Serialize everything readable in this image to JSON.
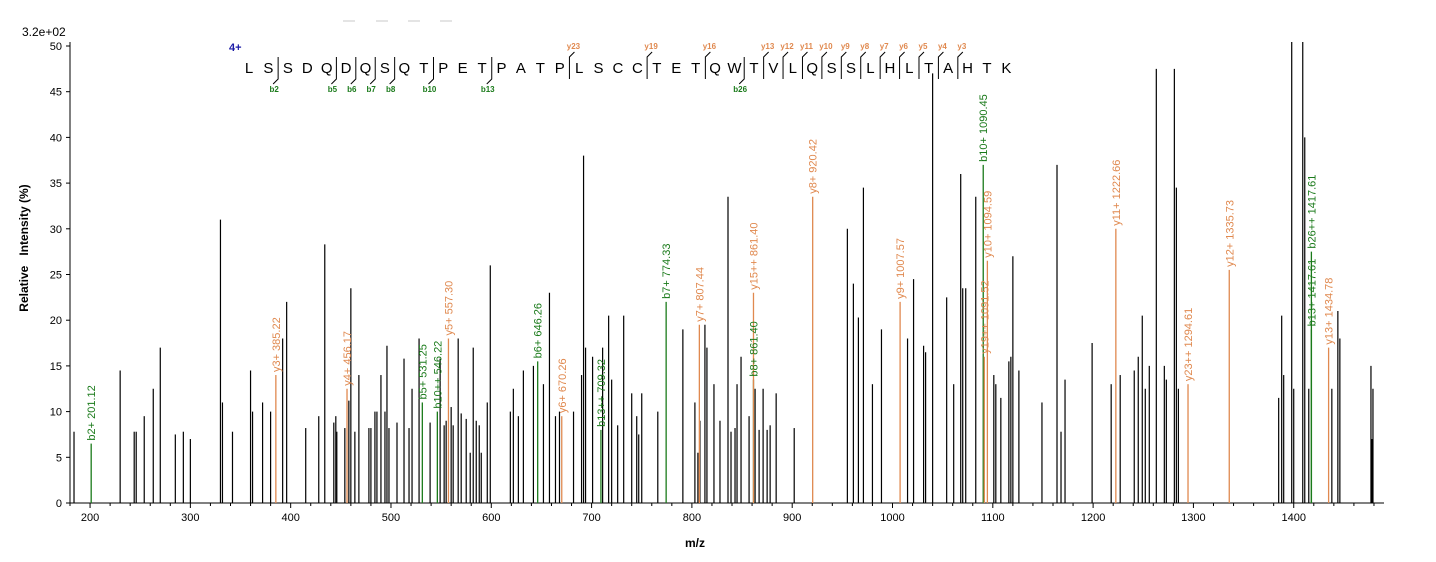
{
  "colors": {
    "b_ion": "#1a7a1a",
    "y_ion": "#e0894f",
    "unannotated": "#000000",
    "charge": "#1a1aa6"
  },
  "chart_data": {
    "type": "bar",
    "title": "",
    "xlabel": "m/z",
    "ylabel": "Relative   Intensity (%)",
    "scale_label": "3.2e+02",
    "xlim": [
      180,
      1490
    ],
    "ylim": [
      0,
      50
    ],
    "x_ticks": [
      200,
      300,
      400,
      500,
      600,
      700,
      800,
      900,
      1000,
      1100,
      1200,
      1300,
      1400
    ],
    "y_ticks": [
      0,
      5,
      10,
      15,
      20,
      25,
      30,
      35,
      40,
      45,
      50
    ],
    "annotated_peaks": [
      {
        "mz": 201.12,
        "intensity": 6.5,
        "label": "b2+ 201.12",
        "ion": "b"
      },
      {
        "mz": 385.22,
        "intensity": 14,
        "label": "y3+ 385.22",
        "ion": "y"
      },
      {
        "mz": 456.17,
        "intensity": 12.5,
        "label": "y4+ 456.17",
        "ion": "y"
      },
      {
        "mz": 531.25,
        "intensity": 11,
        "label": "b5+ 531.25",
        "ion": "b"
      },
      {
        "mz": 546.22,
        "intensity": 10,
        "label": "b10++ 546.22",
        "ion": "b"
      },
      {
        "mz": 557.3,
        "intensity": 18,
        "label": "y5+ 557.30",
        "ion": "y"
      },
      {
        "mz": 646.26,
        "intensity": 15.5,
        "label": "b6+ 646.26",
        "ion": "b"
      },
      {
        "mz": 670.26,
        "intensity": 9.5,
        "label": "y6+ 670.26",
        "ion": "y"
      },
      {
        "mz": 709.32,
        "intensity": 8,
        "label": "b13++ 709.32",
        "ion": "b"
      },
      {
        "mz": 774.33,
        "intensity": 22,
        "label": "b7+ 774.33",
        "ion": "b"
      },
      {
        "mz": 807.44,
        "intensity": 19.5,
        "label": "y7+ 807.44",
        "ion": "y"
      },
      {
        "mz": 861.4,
        "intensity": 13.5,
        "label": "b8+ 861.40",
        "ion": "b"
      },
      {
        "mz": 861.4,
        "intensity": 23,
        "label": "y15++ 861.40",
        "ion": "y"
      },
      {
        "mz": 920.42,
        "intensity": 33.5,
        "label": "y8+ 920.42",
        "ion": "y"
      },
      {
        "mz": 1007.57,
        "intensity": 22,
        "label": "y9+ 1007.57",
        "ion": "y"
      },
      {
        "mz": 1090.45,
        "intensity": 37,
        "label": "b10+ 1090.45",
        "ion": "b"
      },
      {
        "mz": 1091.52,
        "intensity": 16,
        "label": "y19++ 1091.52",
        "ion": "y"
      },
      {
        "mz": 1094.59,
        "intensity": 26.5,
        "label": "y10+ 1094.59",
        "ion": "y"
      },
      {
        "mz": 1222.66,
        "intensity": 30,
        "label": "y11+ 1222.66",
        "ion": "y"
      },
      {
        "mz": 1294.61,
        "intensity": 13,
        "label": "y23++ 1294.61",
        "ion": "y"
      },
      {
        "mz": 1335.73,
        "intensity": 25.5,
        "label": "y12+ 1335.73",
        "ion": "y"
      },
      {
        "mz": 1417.61,
        "intensity": 19,
        "label": "b13+ 1417.61",
        "ion": "b"
      },
      {
        "mz": 1417.61,
        "intensity": 27.5,
        "label": "b26++ 1417.61",
        "ion": "b"
      },
      {
        "mz": 1434.78,
        "intensity": 17,
        "label": "y13+ 1434.78",
        "ion": "y"
      }
    ],
    "unannotated_peaks": [
      [
        184,
        7.8
      ],
      [
        230,
        14.5
      ],
      [
        244,
        7.8
      ],
      [
        246,
        7.8
      ],
      [
        254,
        9.5
      ],
      [
        263,
        12.5
      ],
      [
        270,
        17
      ],
      [
        285,
        7.5
      ],
      [
        293,
        7.8
      ],
      [
        300,
        7
      ],
      [
        330,
        31
      ],
      [
        332,
        11
      ],
      [
        342,
        7.8
      ],
      [
        360,
        14.5
      ],
      [
        362,
        10
      ],
      [
        372,
        11
      ],
      [
        380,
        10
      ],
      [
        392,
        18
      ],
      [
        396,
        22
      ],
      [
        415,
        8.2
      ],
      [
        428,
        9.5
      ],
      [
        434,
        28.3
      ],
      [
        443,
        8.8
      ],
      [
        445,
        9.5
      ],
      [
        446,
        7.8
      ],
      [
        454,
        8.2
      ],
      [
        458,
        11.2
      ],
      [
        460,
        23.5
      ],
      [
        464,
        7.8
      ],
      [
        468,
        14
      ],
      [
        478,
        8.2
      ],
      [
        480,
        8.2
      ],
      [
        484,
        10
      ],
      [
        486,
        10
      ],
      [
        490,
        14
      ],
      [
        494,
        10
      ],
      [
        496,
        17.2
      ],
      [
        498,
        8.2
      ],
      [
        506,
        8.8
      ],
      [
        513,
        15.8
      ],
      [
        518,
        8.2
      ],
      [
        521,
        12.5
      ],
      [
        528,
        18
      ],
      [
        539,
        8.8
      ],
      [
        549,
        15.8
      ],
      [
        553,
        8.5
      ],
      [
        555,
        9
      ],
      [
        560,
        10.5
      ],
      [
        562,
        8.5
      ],
      [
        567,
        18
      ],
      [
        570,
        9.8
      ],
      [
        575,
        9.2
      ],
      [
        579,
        5.5
      ],
      [
        582,
        17
      ],
      [
        585,
        9
      ],
      [
        588,
        8.5
      ],
      [
        590,
        5.5
      ],
      [
        596,
        11
      ],
      [
        599,
        26
      ],
      [
        619,
        10
      ],
      [
        622,
        12.5
      ],
      [
        627,
        9.5
      ],
      [
        632,
        14.5
      ],
      [
        642,
        15
      ],
      [
        652,
        13
      ],
      [
        658,
        23
      ],
      [
        664,
        9.5
      ],
      [
        668,
        10
      ],
      [
        682,
        10
      ],
      [
        690,
        14
      ],
      [
        692,
        38
      ],
      [
        694,
        17
      ],
      [
        701,
        16
      ],
      [
        711,
        17
      ],
      [
        717,
        20.5
      ],
      [
        720,
        13.5
      ],
      [
        726,
        8.5
      ],
      [
        732,
        20.5
      ],
      [
        740,
        12
      ],
      [
        745,
        9.5
      ],
      [
        747,
        7.5
      ],
      [
        750,
        12
      ],
      [
        766,
        10
      ],
      [
        791,
        19
      ],
      [
        803,
        11
      ],
      [
        806,
        5.5
      ],
      [
        808,
        9
      ],
      [
        813,
        19.5
      ],
      [
        815,
        17
      ],
      [
        822,
        13
      ],
      [
        828,
        9
      ],
      [
        836,
        33.5
      ],
      [
        839,
        7.8
      ],
      [
        843,
        8.2
      ],
      [
        845,
        13
      ],
      [
        849,
        16
      ],
      [
        857,
        9.5
      ],
      [
        863,
        12.5
      ],
      [
        867,
        8
      ],
      [
        871,
        12.5
      ],
      [
        875,
        8
      ],
      [
        878,
        8.5
      ],
      [
        884,
        12
      ],
      [
        902,
        8.2
      ],
      [
        955,
        30
      ],
      [
        961,
        24
      ],
      [
        966,
        20.3
      ],
      [
        971,
        34.5
      ],
      [
        980,
        13
      ],
      [
        989,
        19
      ],
      [
        1015,
        18
      ],
      [
        1021,
        24.5
      ],
      [
        1031,
        17.2
      ],
      [
        1033,
        16.5
      ],
      [
        1040,
        47
      ],
      [
        1054,
        22.5
      ],
      [
        1061,
        13
      ],
      [
        1068,
        36
      ],
      [
        1070,
        23.5
      ],
      [
        1073,
        23.5
      ],
      [
        1083,
        33.5
      ],
      [
        1101,
        14
      ],
      [
        1103,
        13
      ],
      [
        1108,
        11.5
      ],
      [
        1116,
        15.5
      ],
      [
        1118,
        16
      ],
      [
        1120,
        27
      ],
      [
        1126,
        14.5
      ],
      [
        1149,
        11
      ],
      [
        1164,
        37
      ],
      [
        1168,
        7.8
      ],
      [
        1172,
        13.5
      ],
      [
        1199,
        17.5
      ],
      [
        1218,
        13
      ],
      [
        1227,
        14
      ],
      [
        1241,
        14.5
      ],
      [
        1245,
        16
      ],
      [
        1249,
        20.5
      ],
      [
        1252,
        12.5
      ],
      [
        1256,
        15
      ],
      [
        1263,
        47.5
      ],
      [
        1271,
        15
      ],
      [
        1273,
        13.5
      ],
      [
        1281,
        47.5
      ],
      [
        1283,
        34.5
      ],
      [
        1285,
        12.5
      ],
      [
        1385,
        11.5
      ],
      [
        1388,
        20.5
      ],
      [
        1390,
        14
      ],
      [
        1398,
        51
      ],
      [
        1400,
        12.5
      ],
      [
        1409,
        51
      ],
      [
        1411,
        40
      ],
      [
        1415,
        12.5
      ],
      [
        1438,
        12.5
      ],
      [
        1444,
        21
      ],
      [
        1446,
        18
      ],
      [
        1477,
        15
      ],
      [
        1478,
        7
      ],
      [
        1479,
        12.5
      ]
    ],
    "peptide": {
      "charge": "4+",
      "sequence": [
        "L",
        "S",
        "S",
        "D",
        "Q",
        "D",
        "Q",
        "S",
        "Q",
        "T",
        "P",
        "E",
        "T",
        "P",
        "A",
        "T",
        "P",
        "L",
        "S",
        "C",
        "C",
        "T",
        "E",
        "T",
        "Q",
        "W",
        "T",
        "V",
        "L",
        "Q",
        "S",
        "S",
        "L",
        "H",
        "L",
        "T",
        "A",
        "H",
        "T",
        "K"
      ],
      "b_ions": [
        {
          "after": 2,
          "label": "b2"
        },
        {
          "after": 5,
          "label": "b5"
        },
        {
          "after": 6,
          "label": "b6"
        },
        {
          "after": 7,
          "label": "b7"
        },
        {
          "after": 8,
          "label": "b8"
        },
        {
          "after": 10,
          "label": "b10"
        },
        {
          "after": 13,
          "label": "b13"
        },
        {
          "after": 26,
          "label": "b26"
        }
      ],
      "y_ions": [
        {
          "after": 17,
          "label": "y23"
        },
        {
          "after": 21,
          "label": "y19"
        },
        {
          "after": 24,
          "label": "y16"
        },
        {
          "after": 27,
          "label": "y13"
        },
        {
          "after": 28,
          "label": "y12"
        },
        {
          "after": 29,
          "label": "y11"
        },
        {
          "after": 30,
          "label": "y10"
        },
        {
          "after": 31,
          "label": "y9"
        },
        {
          "after": 32,
          "label": "y8"
        },
        {
          "after": 33,
          "label": "y7"
        },
        {
          "after": 34,
          "label": "y6"
        },
        {
          "after": 35,
          "label": "y5"
        },
        {
          "after": 36,
          "label": "y4"
        },
        {
          "after": 37,
          "label": "y3"
        }
      ]
    }
  }
}
